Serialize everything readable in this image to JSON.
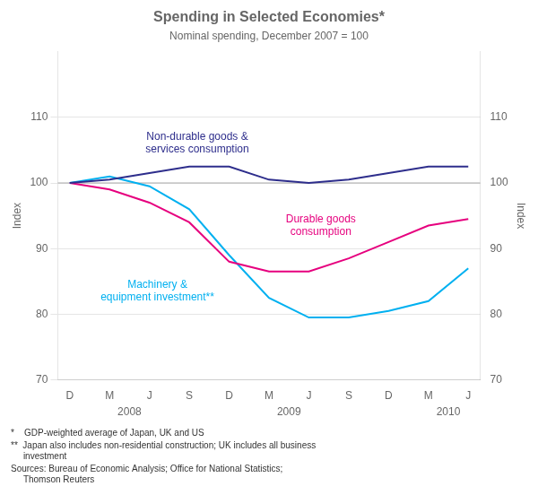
{
  "chart_data": {
    "type": "line",
    "title": "Spending in Selected Economies*",
    "subtitle": "Nominal spending, December 2007 = 100",
    "ylabel": "Index",
    "y2label": "Index",
    "categories": [
      "D",
      "M",
      "J",
      "S",
      "D",
      "M",
      "J",
      "S",
      "D",
      "M",
      "J"
    ],
    "xlim": [
      -0.3,
      10.3
    ],
    "ylim": [
      70,
      120
    ],
    "yticks": [
      70,
      80,
      90,
      100,
      110
    ],
    "y2lim": [
      70,
      120
    ],
    "y2ticks": [
      70,
      80,
      90,
      100,
      110
    ],
    "grid": "y",
    "hlines": [
      100
    ],
    "series": [
      {
        "name": "Non-durable goods &\nservices consumption",
        "color": "#2e2e8c",
        "values": [
          100,
          100.5,
          101.5,
          102.5,
          102.5,
          100.5,
          100.0,
          100.5,
          101.5,
          102.5,
          102.5
        ]
      },
      {
        "name": "Durable goods\nconsumption",
        "color": "#e6007e",
        "values": [
          100,
          99.0,
          97.0,
          94.0,
          88.0,
          86.5,
          86.5,
          88.5,
          91.0,
          93.5,
          94.5
        ]
      },
      {
        "name": "Machinery &\nequipment investment**",
        "color": "#00b0f0",
        "values": [
          100,
          101.0,
          99.5,
          96.0,
          89.0,
          82.5,
          79.5,
          79.5,
          80.5,
          82.0,
          87.0
        ]
      }
    ],
    "annotations": [
      {
        "text": "Non-durable goods &\nservices consumption",
        "x": 3.2,
        "y": 106.0,
        "color": "#2e2e8c"
      },
      {
        "text": "Durable goods\nconsumption",
        "x": 6.3,
        "y": 93.5,
        "color": "#e6007e"
      },
      {
        "text": "Machinery &\nequipment investment**",
        "x": 2.2,
        "y": 83.5,
        "color": "#00b0f0"
      }
    ],
    "year_labels": [
      {
        "text": "2008",
        "x": 1.5
      },
      {
        "text": "2009",
        "x": 5.5
      },
      {
        "text": "2010",
        "x": 9.5
      }
    ],
    "footnotes": [
      "*    GDP-weighted average of Japan, UK and US",
      "**  Japan also includes non-residential construction; UK includes all business\n     investment",
      "Sources: Bureau of Economic Analysis; Office for National Statistics;\n     Thomson Reuters"
    ]
  }
}
